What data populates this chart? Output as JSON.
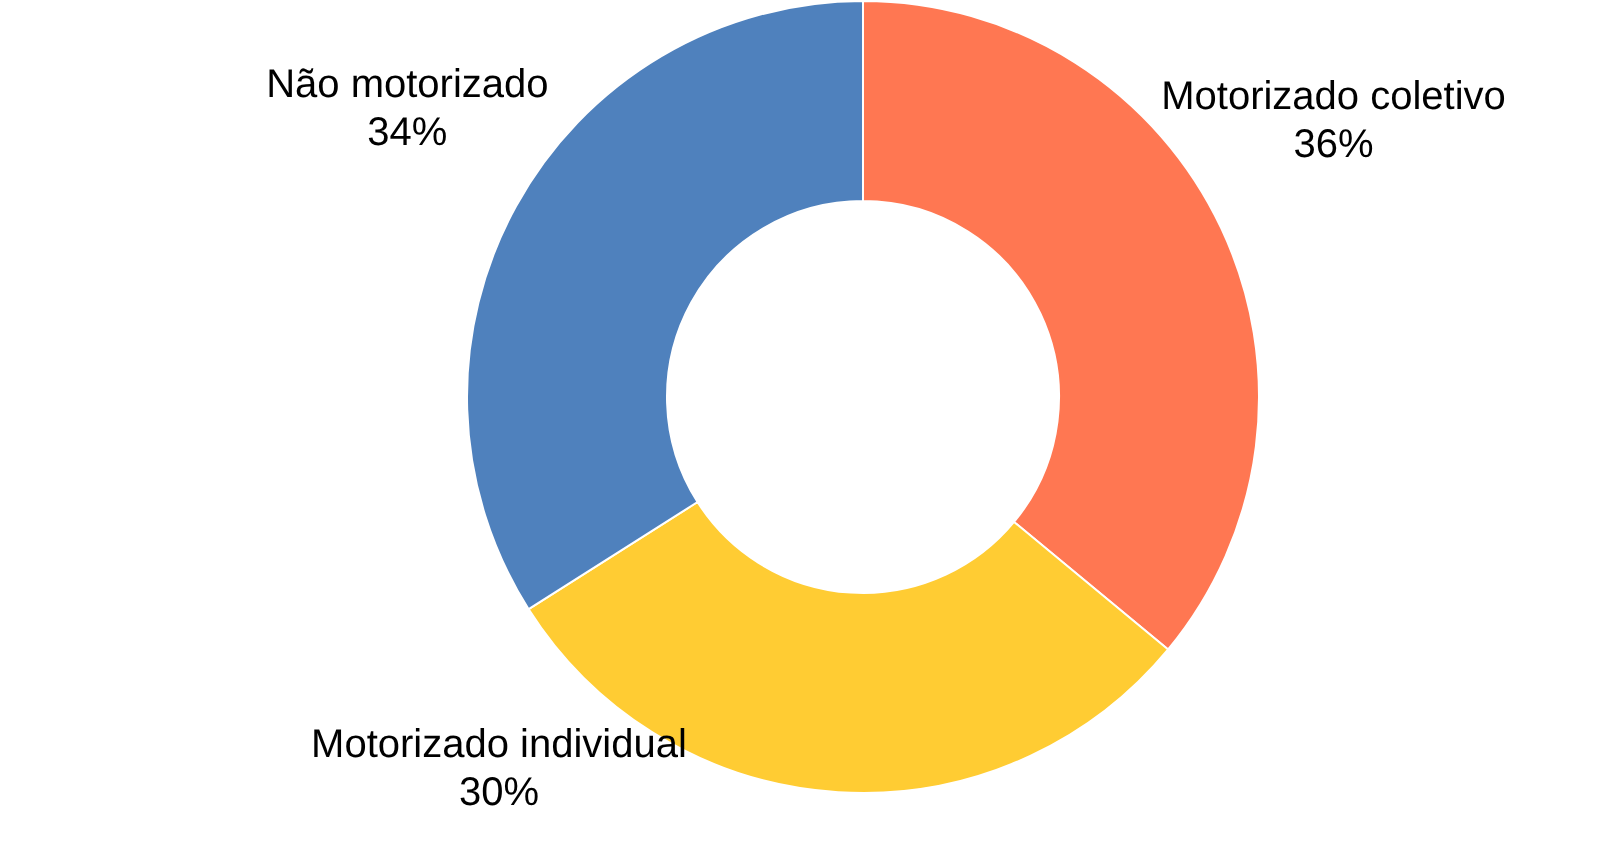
{
  "chart_data": {
    "type": "donut",
    "categories": [
      "Motorizado coletivo",
      "Motorizado individual",
      "Não motorizado"
    ],
    "values": [
      36,
      30,
      34
    ],
    "colors": [
      "#ff7752",
      "#ffcc33",
      "#4f81bd"
    ],
    "value_labels": [
      "36%",
      "30%",
      "34%"
    ]
  }
}
